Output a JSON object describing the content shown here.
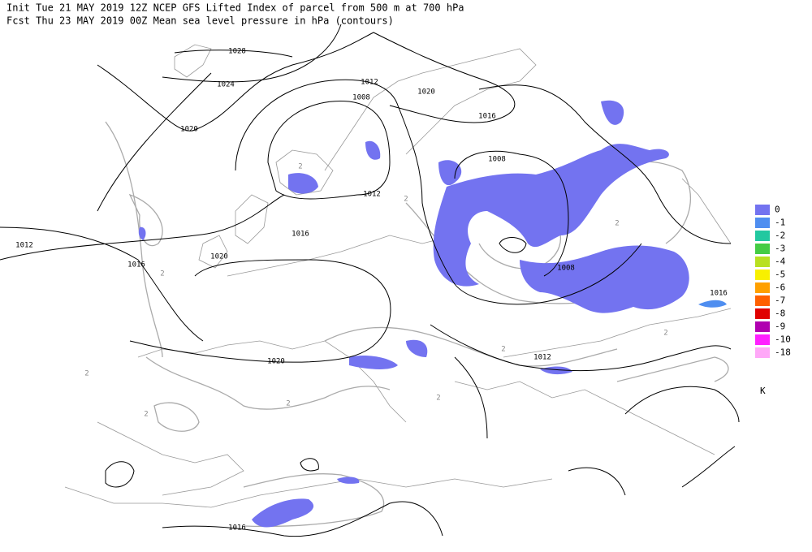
{
  "header": {
    "line1": "Init  Tue 21 MAY 2019 12Z  NCEP GFS Lifted Index of parcel from 500 m at 700 hPa",
    "line2": "Fcst Thu 23 MAY 2019 00Z  Mean sea level pressure in hPa (contours)"
  },
  "contour_labels": [
    "1028",
    "1024",
    "1020",
    "1012",
    "1008",
    "1020",
    "1016",
    "1008",
    "1012",
    "1016",
    "1012",
    "1016",
    "1020",
    "1008",
    "1016",
    "1020",
    "1012",
    "1016"
  ],
  "gray_labels": [
    "2",
    "2",
    "2",
    "2",
    "2",
    "2",
    "2",
    "2",
    "2",
    "2"
  ],
  "legend": {
    "items": [
      {
        "label": "0",
        "color": "#7373f0"
      },
      {
        "label": "-1",
        "color": "#4f8ef0"
      },
      {
        "label": "-2",
        "color": "#22c8a0"
      },
      {
        "label": "-3",
        "color": "#44cc44"
      },
      {
        "label": "-4",
        "color": "#b8e020"
      },
      {
        "label": "-5",
        "color": "#f8f000"
      },
      {
        "label": "-6",
        "color": "#ffa000"
      },
      {
        "label": "-7",
        "color": "#ff6000"
      },
      {
        "label": "-8",
        "color": "#e00000"
      },
      {
        "label": "-9",
        "color": "#b000b0"
      },
      {
        "label": "-10",
        "color": "#ff20ff"
      },
      {
        "label": "-18",
        "color": "#ffa8f8"
      }
    ],
    "unit": "K"
  }
}
